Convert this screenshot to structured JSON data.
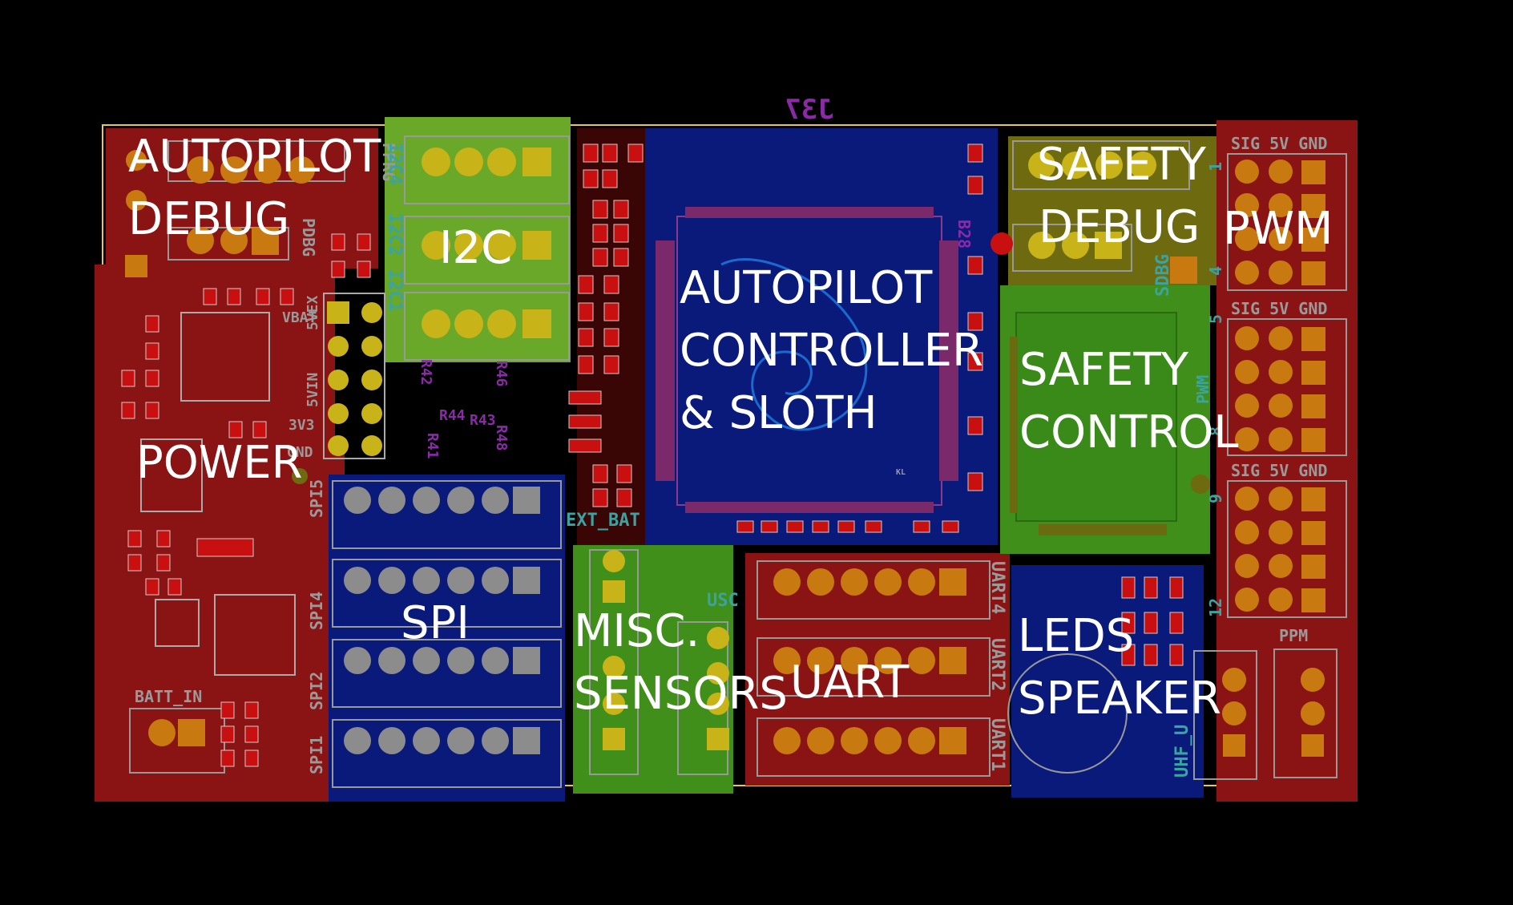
{
  "colors": {
    "background": "#000000",
    "outline": "#e8c84a",
    "zone_red": "#8a1414",
    "zone_blue": "#0a1a7a",
    "zone_green": "#3f8f1a",
    "zone_olive": "#6e6a10",
    "zone_lime": "#6aa82a",
    "pad_orange": "#c87a10",
    "pad_gold": "#c8b418",
    "pad_gray": "#8c8c8c",
    "silk_gray": "#9a9a9a",
    "silk_teal": "#3aa3a3",
    "silk_purple": "#8a2aa8"
  },
  "board_ref": "J37",
  "regions": {
    "autopilot_debug": [
      "AUTOPILOT",
      "DEBUG"
    ],
    "i2c": "I2C",
    "autopilot_controller": [
      "AUTOPILOT",
      "CONTROLLER",
      "& SLOTH"
    ],
    "safety_debug": [
      "SAFETY",
      "DEBUG"
    ],
    "pwm": "PWM",
    "safety_control": [
      "SAFETY",
      "CONTROL"
    ],
    "power": "POWER",
    "spi": "SPI",
    "misc_sensors": [
      "MISC.",
      "SENSORS"
    ],
    "uart": "UART",
    "leds_speaker": [
      "LEDS",
      "SPEAKER"
    ]
  },
  "silk": {
    "pprg": "PPRG",
    "pdbg": "PDBG",
    "i2c4": "I2C4",
    "i2c2": "I2C2",
    "i2c1": "I2C1",
    "vbat": "VBAT",
    "5vex": "5VEX",
    "5vin": "5VIN",
    "3v3": "3V3",
    "gnd": "GND",
    "spi5": "SPI5",
    "spi4": "SPI4",
    "spi2": "SPI2",
    "spi1": "SPI1",
    "batt_in": "BATT_IN",
    "ext_bat": "EXT_BAT",
    "usc": "USC",
    "uart4": "UART4",
    "uart2": "UART2",
    "uart1": "UART1",
    "uhf_u": "UHF_U",
    "ppm": "PPM",
    "sdbg": "SDBG",
    "b28": "B28",
    "pwm_small": "PWM",
    "sig_5v_gnd": "SIG 5V GND",
    "pwm_1": "1",
    "pwm_4": "4",
    "pwm_5": "5",
    "pwm_8": "8",
    "pwm_9": "9",
    "pwm_12": "12",
    "kl": "KL",
    "r41": "R41",
    "r42": "R42",
    "r43": "R43",
    "r44": "R44",
    "r46": "R46",
    "r48": "R48"
  }
}
